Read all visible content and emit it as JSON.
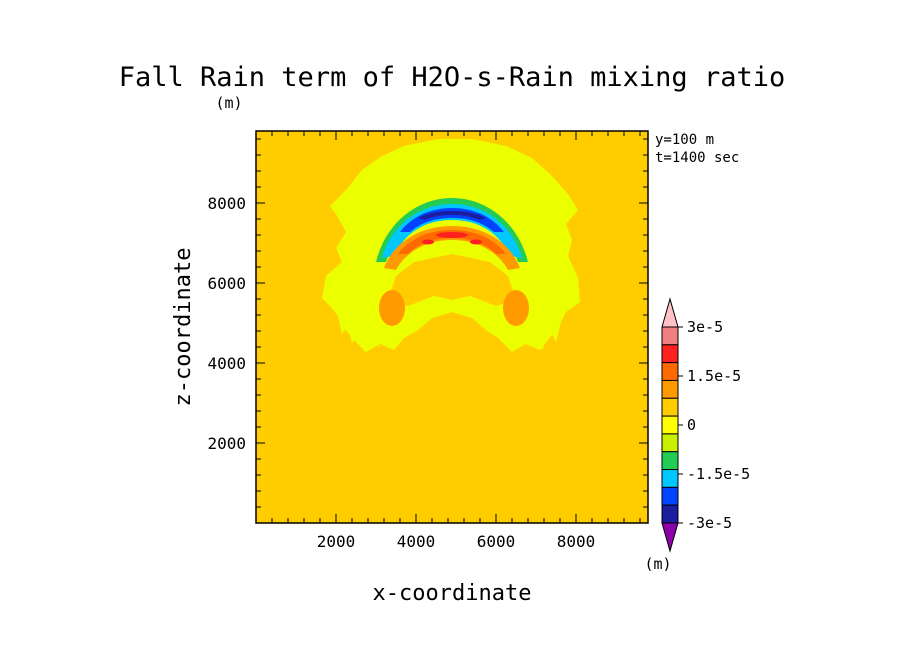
{
  "chart_data": {
    "type": "contour",
    "title": "Fall Rain term of H2O-s-Rain mixing ratio",
    "units": "(m)",
    "colorbar_units": "(m)",
    "xlabel": "x-coordinate",
    "ylabel": "z-coordinate",
    "annotations": [
      "y=100 m",
      "t=1400 sec"
    ],
    "xlim": [
      0,
      9800
    ],
    "ylim": [
      0,
      9800
    ],
    "x_ticks": [
      2000,
      4000,
      6000,
      8000
    ],
    "y_ticks": [
      2000,
      4000,
      6000,
      8000
    ],
    "x_tick_labels": [
      "2000",
      "4000",
      "6000",
      "8000"
    ],
    "y_tick_labels": [
      "2000",
      "4000",
      "6000",
      "8000"
    ],
    "background_level": 0,
    "colorbar": {
      "levels": [
        -3e-05,
        -2.5e-05,
        -2e-05,
        -1.5e-05,
        -1e-05,
        -5e-06,
        0,
        5e-06,
        1e-05,
        1.5e-05,
        2e-05,
        2.5e-05,
        3e-05
      ],
      "colors": [
        "#8e00a8",
        "#1c1c9e",
        "#0044ff",
        "#00c8ff",
        "#22cc55",
        "#c8f000",
        "#ffff00",
        "#ffcc00",
        "#ff9a00",
        "#ff6a00",
        "#ff2020",
        "#f08080",
        "#ffc0c8"
      ],
      "tick_labels": [
        "3e-5",
        "1.5e-5",
        "0",
        "-1.5e-5",
        "-3e-5"
      ]
    },
    "features": [
      {
        "name": "outer weak negative canopy",
        "sign": "negative",
        "level": -5e-06,
        "x_range": [
          1600,
          8100
        ],
        "z_range": [
          4300,
          9400
        ]
      },
      {
        "name": "negative arc",
        "sign": "negative",
        "level": -2.5e-05,
        "x_center": 4950,
        "z_peak": 8000,
        "x_range": [
          3100,
          6700
        ]
      },
      {
        "name": "positive arc",
        "sign": "positive",
        "level": 2e-05,
        "x_center": 4950,
        "z_peak": 7300,
        "x_range": [
          3300,
          6500
        ]
      },
      {
        "name": "left positive lobe",
        "sign": "positive",
        "level": 1e-05,
        "x": 3300,
        "z": 5500
      },
      {
        "name": "right positive lobe",
        "sign": "positive",
        "level": 1e-05,
        "x": 6500,
        "z": 5500
      }
    ]
  }
}
